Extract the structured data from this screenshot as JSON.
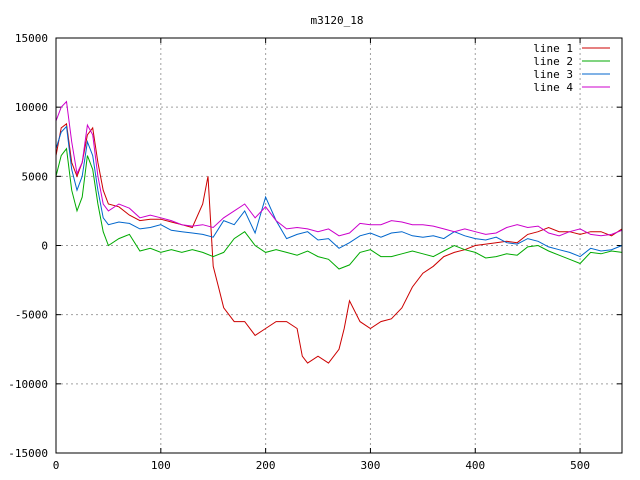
{
  "chart_data": {
    "type": "line",
    "title": "m3120_18",
    "xlabel": "",
    "ylabel": "",
    "xlim": [
      0,
      540
    ],
    "ylim": [
      -15000,
      15000
    ],
    "grid": true,
    "legend_position": "top-right",
    "x_ticks": [
      "0",
      "100",
      "200",
      "300",
      "400",
      "500"
    ],
    "y_ticks": [
      "15000",
      "10000",
      "5000",
      "0",
      "-5000",
      "-10000",
      "-15000"
    ],
    "series": [
      {
        "name": "line 1",
        "color": "#cc0000",
        "x": [
          0,
          5,
          10,
          15,
          20,
          25,
          30,
          35,
          40,
          45,
          50,
          60,
          70,
          80,
          90,
          100,
          110,
          120,
          130,
          140,
          145,
          150,
          155,
          160,
          170,
          180,
          190,
          200,
          210,
          220,
          230,
          235,
          240,
          250,
          260,
          270,
          275,
          280,
          290,
          300,
          310,
          320,
          330,
          340,
          350,
          360,
          370,
          380,
          390,
          400,
          410,
          420,
          430,
          440,
          450,
          460,
          470,
          480,
          490,
          500,
          510,
          520,
          530,
          540
        ],
        "y": [
          6500,
          8500,
          8800,
          6000,
          5000,
          6000,
          8000,
          8500,
          6000,
          4000,
          3000,
          2800,
          2200,
          1800,
          1900,
          1900,
          1700,
          1500,
          1300,
          3000,
          5000,
          -1500,
          -3000,
          -4500,
          -5500,
          -5500,
          -6500,
          -6000,
          -5500,
          -5500,
          -6000,
          -8000,
          -8500,
          -8000,
          -8500,
          -7500,
          -6000,
          -4000,
          -5500,
          -6000,
          -5500,
          -5300,
          -4500,
          -3000,
          -2000,
          -1500,
          -800,
          -500,
          -300,
          0,
          100,
          200,
          300,
          200,
          800,
          1000,
          1300,
          1000,
          1000,
          800,
          1000,
          1000,
          700,
          1200
        ]
      },
      {
        "name": "line 2",
        "color": "#00aa00",
        "x": [
          0,
          5,
          10,
          15,
          20,
          25,
          30,
          35,
          40,
          45,
          50,
          60,
          70,
          80,
          90,
          100,
          110,
          120,
          130,
          140,
          150,
          160,
          170,
          180,
          190,
          200,
          210,
          220,
          230,
          240,
          250,
          260,
          270,
          280,
          290,
          300,
          310,
          320,
          330,
          340,
          350,
          360,
          370,
          380,
          390,
          400,
          410,
          420,
          430,
          440,
          450,
          460,
          470,
          480,
          490,
          500,
          510,
          520,
          530,
          540
        ],
        "y": [
          5000,
          6500,
          7000,
          4000,
          2500,
          3500,
          6500,
          5500,
          3000,
          1000,
          0,
          500,
          800,
          -400,
          -200,
          -500,
          -300,
          -500,
          -300,
          -500,
          -800,
          -500,
          500,
          1000,
          0,
          -500,
          -300,
          -500,
          -700,
          -400,
          -800,
          -1000,
          -1700,
          -1400,
          -500,
          -300,
          -800,
          -800,
          -600,
          -400,
          -600,
          -800,
          -400,
          0,
          -300,
          -500,
          -900,
          -800,
          -600,
          -700,
          -100,
          0,
          -400,
          -700,
          -1000,
          -1300,
          -500,
          -600,
          -400,
          -500
        ]
      },
      {
        "name": "line 3",
        "color": "#0066cc",
        "x": [
          0,
          5,
          10,
          15,
          20,
          25,
          30,
          35,
          40,
          45,
          50,
          60,
          70,
          80,
          90,
          100,
          110,
          120,
          130,
          140,
          150,
          160,
          170,
          180,
          190,
          200,
          210,
          220,
          230,
          240,
          250,
          260,
          270,
          280,
          290,
          300,
          310,
          320,
          330,
          340,
          350,
          360,
          370,
          380,
          390,
          400,
          410,
          420,
          430,
          440,
          450,
          460,
          470,
          480,
          490,
          500,
          510,
          520,
          530,
          540
        ],
        "y": [
          7000,
          8200,
          8600,
          5500,
          4000,
          5000,
          7500,
          6500,
          4000,
          2000,
          1500,
          1700,
          1600,
          1200,
          1300,
          1500,
          1100,
          1000,
          900,
          800,
          600,
          1800,
          1500,
          2500,
          900,
          3500,
          1800,
          500,
          800,
          1000,
          400,
          500,
          -200,
          200,
          700,
          900,
          600,
          900,
          1000,
          700,
          600,
          700,
          500,
          1000,
          700,
          500,
          400,
          600,
          200,
          100,
          500,
          300,
          -100,
          -300,
          -500,
          -800,
          -200,
          -400,
          -300,
          0
        ]
      },
      {
        "name": "line 4",
        "color": "#cc00cc",
        "x": [
          0,
          5,
          10,
          15,
          20,
          25,
          30,
          35,
          40,
          45,
          50,
          60,
          70,
          80,
          90,
          100,
          110,
          120,
          130,
          140,
          150,
          160,
          170,
          180,
          190,
          200,
          210,
          220,
          230,
          240,
          250,
          260,
          270,
          280,
          290,
          300,
          310,
          320,
          330,
          340,
          350,
          360,
          370,
          380,
          390,
          400,
          410,
          420,
          430,
          440,
          450,
          460,
          470,
          480,
          490,
          500,
          510,
          520,
          530,
          540
        ],
        "y": [
          9000,
          10000,
          10400,
          7500,
          5200,
          6000,
          8700,
          8000,
          5000,
          3000,
          2500,
          3000,
          2700,
          2000,
          2200,
          2000,
          1800,
          1500,
          1400,
          1500,
          1300,
          2000,
          2500,
          3000,
          2000,
          2800,
          1800,
          1200,
          1300,
          1200,
          1000,
          1200,
          700,
          900,
          1600,
          1500,
          1500,
          1800,
          1700,
          1500,
          1500,
          1400,
          1200,
          1000,
          1200,
          1000,
          800,
          900,
          1300,
          1500,
          1300,
          1400,
          900,
          700,
          1000,
          1200,
          800,
          700,
          800,
          1100
        ]
      }
    ]
  }
}
